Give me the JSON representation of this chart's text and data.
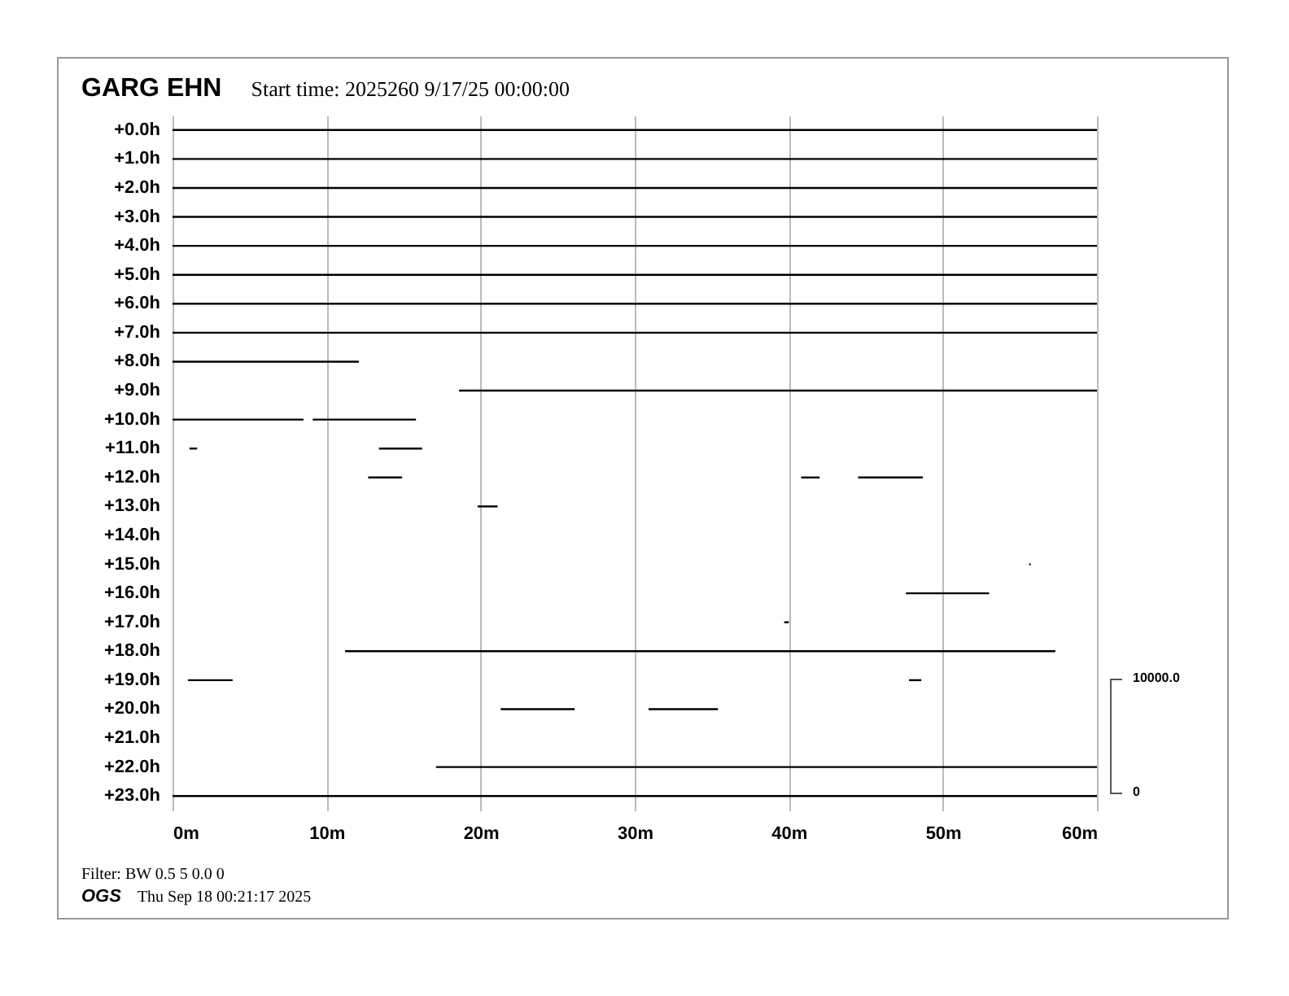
{
  "chart_data": {
    "type": "bar",
    "orientation": "horizontal",
    "title": "GARG EHN",
    "subtitle": "Start time: 2025260  9/17/25 00:00:00",
    "categories": [
      "+0.0h",
      "+1.0h",
      "+2.0h",
      "+3.0h",
      "+4.0h",
      "+5.0h",
      "+6.0h",
      "+7.0h",
      "+8.0h",
      "+9.0h",
      "+10.0h",
      "+11.0h",
      "+12.0h",
      "+13.0h",
      "+14.0h",
      "+15.0h",
      "+16.0h",
      "+17.0h",
      "+18.0h",
      "+19.0h",
      "+20.0h",
      "+21.0h",
      "+22.0h",
      "+23.0h"
    ],
    "series": [
      {
        "color": "#000000",
        "base": [
          0,
          0,
          0,
          0,
          0,
          0,
          0,
          0,
          0,
          18.6,
          0,
          1.1,
          12.7,
          19.8,
          null,
          55.6,
          47.6,
          39.7,
          11.2,
          1.0,
          21.3,
          null,
          17.1,
          0
        ],
        "values": [
          60,
          60,
          60,
          60,
          60,
          60,
          60,
          60,
          12.1,
          41.4,
          8.5,
          0.5,
          2.2,
          1.3,
          null,
          0.1,
          5.4,
          0.3,
          46.1,
          2.9,
          4.8,
          null,
          42.9,
          60
        ]
      },
      {
        "color": "#000000",
        "base": [
          null,
          null,
          null,
          null,
          null,
          null,
          null,
          null,
          null,
          null,
          9.1,
          13.4,
          40.8,
          null,
          null,
          null,
          null,
          null,
          null,
          47.8,
          30.9,
          null,
          null,
          null
        ],
        "values": [
          null,
          null,
          null,
          null,
          null,
          null,
          null,
          null,
          null,
          null,
          6.7,
          2.8,
          1.2,
          null,
          null,
          null,
          null,
          null,
          null,
          0.8,
          4.5,
          null,
          null,
          null
        ]
      },
      {
        "color": "#000000",
        "base": [
          null,
          null,
          null,
          null,
          null,
          null,
          null,
          null,
          null,
          null,
          null,
          null,
          44.5,
          null,
          null,
          null,
          null,
          null,
          null,
          null,
          null,
          null,
          null,
          null
        ],
        "values": [
          null,
          null,
          null,
          null,
          null,
          null,
          null,
          null,
          null,
          null,
          null,
          null,
          4.2,
          null,
          null,
          null,
          null,
          null,
          null,
          null,
          null,
          null,
          null,
          null
        ]
      }
    ],
    "xlim": [
      0,
      60
    ],
    "xticks": [
      {
        "value": 0,
        "label": "0m"
      },
      {
        "value": 10,
        "label": "10m"
      },
      {
        "value": 20,
        "label": "20m"
      },
      {
        "value": 30,
        "label": "30m"
      },
      {
        "value": 40,
        "label": "40m"
      },
      {
        "value": 50,
        "label": "50m"
      },
      {
        "value": 60,
        "label": "60m"
      }
    ],
    "grid": "x",
    "annotations": [
      "10000.0",
      "0",
      "Filter: BW 0.5 5 0.0 0",
      "OGS",
      "Thu Sep 18 00:21:17 2025"
    ]
  }
}
